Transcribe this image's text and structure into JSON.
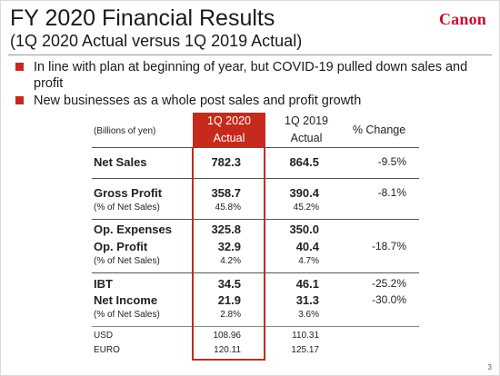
{
  "header": {
    "title": "FY 2020 Financial Results",
    "subtitle": "(1Q 2020 Actual versus 1Q 2019 Actual)",
    "logo": "Canon"
  },
  "bullets": [
    "In line with plan at beginning of year, but COVID-19 pulled down sales and profit",
    "New businesses as a whole post sales and profit growth"
  ],
  "table": {
    "units": "(Billions of yen)",
    "col_actual_line1": "1Q 2020",
    "col_actual_line2": "Actual",
    "col_prev_line1": "1Q 2019",
    "col_prev_line2": "Actual",
    "col_change": "% Change",
    "rows": [
      {
        "label": "Net Sales",
        "v2020": "782.3",
        "v2019": "864.5",
        "change": "-9.5%"
      },
      {
        "label": "Gross Profit",
        "v2020": "358.7",
        "v2019": "390.4",
        "change": "-8.1%"
      },
      {
        "label": "(% of Net Sales)",
        "v2020": "45.8%",
        "v2019": "45.2%",
        "change": ""
      },
      {
        "label": "Op. Expenses",
        "v2020": "325.8",
        "v2019": "350.0",
        "change": ""
      },
      {
        "label": "Op. Profit",
        "v2020": "32.9",
        "v2019": "40.4",
        "change": "-18.7%"
      },
      {
        "label": "(% of Net Sales)",
        "v2020": "4.2%",
        "v2019": "4.7%",
        "change": ""
      },
      {
        "label": "IBT",
        "v2020": "34.5",
        "v2019": "46.1",
        "change": "-25.2%"
      },
      {
        "label": "Net Income",
        "v2020": "21.9",
        "v2019": "31.3",
        "change": "-30.0%"
      },
      {
        "label": "(% of Net Sales)",
        "v2020": "2.8%",
        "v2019": "3.6%",
        "change": ""
      },
      {
        "label": "USD",
        "v2020": "108.96",
        "v2019": "110.31",
        "change": ""
      },
      {
        "label": "EURO",
        "v2020": "120.11",
        "v2019": "125.17",
        "change": ""
      }
    ]
  },
  "page_number": "3",
  "colors": {
    "accent": "#c62a1c",
    "logo": "#c8102e"
  }
}
